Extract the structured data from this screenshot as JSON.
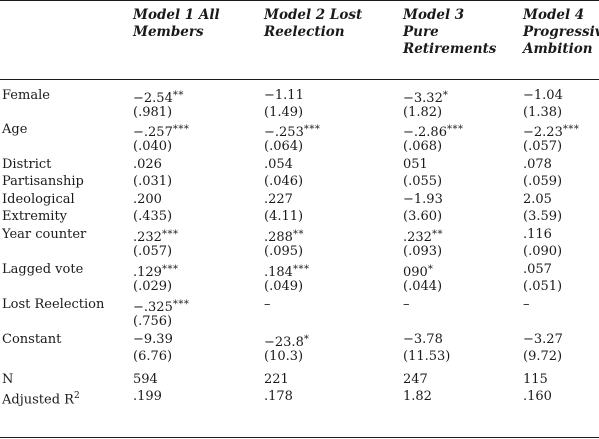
{
  "headers": [
    "Model 1 All\nMembers",
    "Model 2 Lost\nReelection",
    "Model 3\nPure\nRetirements",
    "Model 4\nProgressive\nAmbition"
  ],
  "rows": [
    {
      "label": "Female",
      "cells": [
        {
          "v": "−2.54",
          "s": "**"
        },
        {
          "v": "−1.11",
          "s": ""
        },
        {
          "v": "−3.32",
          "s": "*"
        },
        {
          "v": "−1.04",
          "s": ""
        }
      ]
    },
    {
      "label": "",
      "cells": [
        {
          "v": "(.981)",
          "s": ""
        },
        {
          "v": "(1.49)",
          "s": ""
        },
        {
          "v": "(1.82)",
          "s": ""
        },
        {
          "v": "(1.38)",
          "s": ""
        }
      ]
    },
    {
      "label": "Age",
      "cells": [
        {
          "v": "−.257",
          "s": "***"
        },
        {
          "v": "−.253",
          "s": "***"
        },
        {
          "v": "−.2.86",
          "s": "***"
        },
        {
          "v": "−2.23",
          "s": "***"
        }
      ]
    },
    {
      "label": "",
      "cells": [
        {
          "v": "(.040)",
          "s": ""
        },
        {
          "v": "(.064)",
          "s": ""
        },
        {
          "v": "(.068)",
          "s": ""
        },
        {
          "v": "(.057)",
          "s": ""
        }
      ]
    },
    {
      "label": "District",
      "cells": [
        {
          "v": ".026",
          "s": ""
        },
        {
          "v": ".054",
          "s": ""
        },
        {
          "v": "051",
          "s": ""
        },
        {
          "v": ".078",
          "s": ""
        }
      ]
    },
    {
      "label": "Partisanship",
      "cells": [
        {
          "v": "(.031)",
          "s": ""
        },
        {
          "v": "(.046)",
          "s": ""
        },
        {
          "v": "(.055)",
          "s": ""
        },
        {
          "v": "(.059)",
          "s": ""
        }
      ]
    },
    {
      "label": "Ideological",
      "cells": [
        {
          "v": ".200",
          "s": ""
        },
        {
          "v": ".227",
          "s": ""
        },
        {
          "v": "−1.93",
          "s": ""
        },
        {
          "v": "2.05",
          "s": ""
        }
      ]
    },
    {
      "label": "Extremity",
      "cells": [
        {
          "v": "(.435)",
          "s": ""
        },
        {
          "v": "(4.11)",
          "s": ""
        },
        {
          "v": "(3.60)",
          "s": ""
        },
        {
          "v": "(3.59)",
          "s": ""
        }
      ]
    },
    {
      "label": "Year counter",
      "cells": [
        {
          "v": ".232",
          "s": "***"
        },
        {
          "v": ".288",
          "s": "**"
        },
        {
          "v": ".232",
          "s": "**"
        },
        {
          "v": ".116",
          "s": ""
        }
      ]
    },
    {
      "label": "",
      "cells": [
        {
          "v": "(.057)",
          "s": ""
        },
        {
          "v": "(.095)",
          "s": ""
        },
        {
          "v": "(.093)",
          "s": ""
        },
        {
          "v": "(.090)",
          "s": ""
        }
      ]
    },
    {
      "label": "Lagged vote",
      "cells": [
        {
          "v": ".129",
          "s": "***"
        },
        {
          "v": ".184",
          "s": "***"
        },
        {
          "v": "090",
          "s": "*"
        },
        {
          "v": ".057",
          "s": ""
        }
      ]
    },
    {
      "label": "",
      "cells": [
        {
          "v": "(.029)",
          "s": ""
        },
        {
          "v": "(.049)",
          "s": ""
        },
        {
          "v": "(.044)",
          "s": ""
        },
        {
          "v": "(.051)",
          "s": ""
        }
      ]
    },
    {
      "label": "Lost Reelection",
      "cells": [
        {
          "v": "−.325",
          "s": "***"
        },
        {
          "v": "–",
          "s": ""
        },
        {
          "v": "–",
          "s": ""
        },
        {
          "v": "–",
          "s": ""
        }
      ]
    },
    {
      "label": "",
      "cells": [
        {
          "v": "(.756)",
          "s": ""
        },
        {
          "v": "",
          "s": ""
        },
        {
          "v": "",
          "s": ""
        },
        {
          "v": "",
          "s": ""
        }
      ]
    },
    {
      "label": "Constant",
      "cells": [
        {
          "v": "−9.39",
          "s": ""
        },
        {
          "v": "−23.8",
          "s": "*"
        },
        {
          "v": "−3.78",
          "s": ""
        },
        {
          "v": "−3.27",
          "s": ""
        }
      ]
    },
    {
      "label": "",
      "cells": [
        {
          "v": "(6.76)",
          "s": ""
        },
        {
          "v": "(10.3)",
          "s": ""
        },
        {
          "v": "(11.53)",
          "s": ""
        },
        {
          "v": "(9.72)",
          "s": ""
        }
      ]
    },
    {
      "label": "N",
      "cells": [
        {
          "v": "594",
          "s": ""
        },
        {
          "v": "221",
          "s": ""
        },
        {
          "v": "247",
          "s": ""
        },
        {
          "v": "115",
          "s": ""
        }
      ]
    },
    {
      "label": "Adjusted R",
      "sup": "2",
      "cells": [
        {
          "v": ".199",
          "s": ""
        },
        {
          "v": ".178",
          "s": ""
        },
        {
          "v": "1.82",
          "s": ""
        },
        {
          "v": ".160",
          "s": ""
        }
      ]
    }
  ]
}
